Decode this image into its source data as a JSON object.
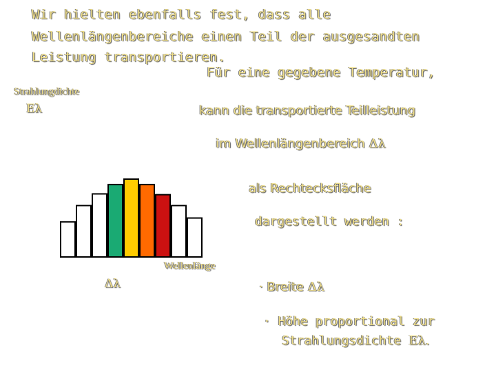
{
  "intro": {
    "line1": "Wir hielten ebenfalls fest, dass alle",
    "line2": "Wellenlängenbereiche einen Teil der ausgesandten",
    "line3": "Leistung transportieren."
  },
  "statement": {
    "line1": "Für eine gegebene Temperatur,",
    "line2": "kann die transportierte Teilleistung",
    "line3_prefix": "im Wellenlängenbereich ",
    "line3_symbol": "Δλ",
    "line4": "als Rechtecksfläche",
    "line5": "dargestellt werden :"
  },
  "y_axis": {
    "label": "Strahlungdichte",
    "symbol": "Eλ"
  },
  "x_axis": {
    "label": "Wellenlänge",
    "delta_symbol": "Δλ"
  },
  "bullets": [
    {
      "prefix": "· Breite ",
      "symbol": "Δλ"
    },
    {
      "line1": "· Höhe proportional zur",
      "line2_prefix": "Strahlungsdichte ",
      "line2_symbol": "Eλ."
    }
  ],
  "bars": [
    {
      "color": "#ffffff",
      "height": 0.45
    },
    {
      "color": "#ffffff",
      "height": 0.66
    },
    {
      "color": "#ffffff",
      "height": 0.81
    },
    {
      "color": "#1aaa73",
      "height": 0.93
    },
    {
      "color": "#ffcc00",
      "height": 1.0
    },
    {
      "color": "#ff6a00",
      "height": 0.93
    },
    {
      "color": "#cc1111",
      "height": 0.8
    },
    {
      "color": "#ffffff",
      "height": 0.66
    },
    {
      "color": "#ffffff",
      "height": 0.5
    }
  ]
}
